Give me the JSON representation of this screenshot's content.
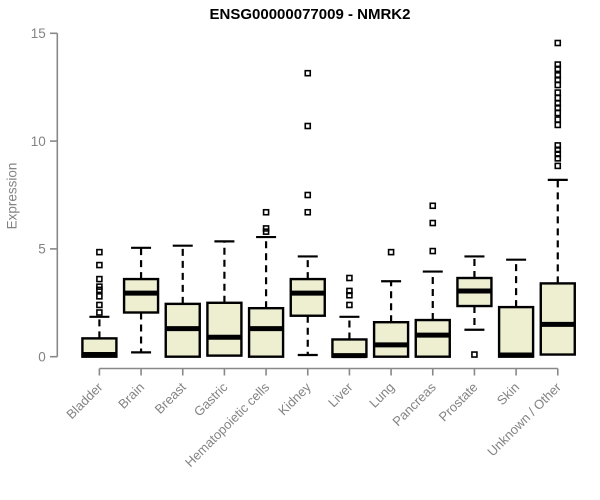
{
  "chart_data": {
    "type": "boxplot",
    "title": "ENSG00000077009 - NMRK2",
    "ylabel": "Expression",
    "xlabel": "",
    "ylim": [
      0,
      15
    ],
    "yticks": [
      0,
      5,
      10,
      15
    ],
    "grid": false,
    "legend": "none",
    "colors": {
      "box_fill": "#EEEED1",
      "box_stroke": "#000000",
      "median": "#000000",
      "axis": "#888888",
      "tick_label": "#838383",
      "title": "#000000"
    },
    "categories": [
      "Bladder",
      "Brain",
      "Breast",
      "Gastric",
      "Hematopoietic cells",
      "Kidney",
      "Liver",
      "Lung",
      "Pancreas",
      "Prostate",
      "Skin",
      "Unknown / Other"
    ],
    "series": [
      {
        "label": "Bladder",
        "q1": 0,
        "median": 0.1,
        "q3": 0.85,
        "whisker_low": 0,
        "whisker_high": 1.85,
        "outliers": [
          2.05,
          2.4,
          2.8,
          3.1,
          3.25,
          3.6,
          4.25,
          4.85
        ]
      },
      {
        "label": "Brain",
        "q1": 2.05,
        "median": 2.95,
        "q3": 3.6,
        "whisker_low": 0.2,
        "whisker_high": 5.05,
        "outliers": []
      },
      {
        "label": "Breast",
        "q1": 0,
        "median": 1.3,
        "q3": 2.45,
        "whisker_low": 0,
        "whisker_high": 5.15,
        "outliers": []
      },
      {
        "label": "Gastric",
        "q1": 0.05,
        "median": 0.9,
        "q3": 2.5,
        "whisker_low": 0.05,
        "whisker_high": 5.35,
        "outliers": []
      },
      {
        "label": "Hematopoietic cells",
        "q1": 0,
        "median": 1.3,
        "q3": 2.25,
        "whisker_low": 0,
        "whisker_high": 5.55,
        "outliers": [
          5.8,
          5.95,
          6.7
        ]
      },
      {
        "label": "Kidney",
        "q1": 1.9,
        "median": 2.95,
        "q3": 3.6,
        "whisker_low": 0.08,
        "whisker_high": 4.65,
        "outliers": [
          6.7,
          7.5,
          10.7,
          13.15
        ]
      },
      {
        "label": "Liver",
        "q1": 0,
        "median": 0.05,
        "q3": 0.8,
        "whisker_low": 0,
        "whisker_high": 1.85,
        "outliers": [
          2.4,
          2.85,
          3.05,
          3.65
        ]
      },
      {
        "label": "Lung",
        "q1": 0,
        "median": 0.55,
        "q3": 1.6,
        "whisker_low": 0,
        "whisker_high": 3.5,
        "outliers": [
          4.85
        ]
      },
      {
        "label": "Pancreas",
        "q1": 0,
        "median": 1.0,
        "q3": 1.7,
        "whisker_low": 0,
        "whisker_high": 3.95,
        "outliers": [
          4.9,
          6.2,
          7.0
        ]
      },
      {
        "label": "Prostate",
        "q1": 2.35,
        "median": 3.05,
        "q3": 3.65,
        "whisker_low": 1.25,
        "whisker_high": 4.65,
        "outliers": [
          0.1
        ]
      },
      {
        "label": "Skin",
        "q1": 0,
        "median": 0.08,
        "q3": 2.3,
        "whisker_low": 0,
        "whisker_high": 4.5,
        "outliers": []
      },
      {
        "label": "Unknown / Other",
        "q1": 0.1,
        "median": 1.5,
        "q3": 3.4,
        "whisker_low": 0.1,
        "whisker_high": 8.2,
        "outliers": [
          8.85,
          9.2,
          9.4,
          9.6,
          9.8,
          10.75,
          11.0,
          11.3,
          11.55,
          11.75,
          12.0,
          12.25,
          12.6,
          12.85,
          13.05,
          13.35,
          13.55,
          14.55
        ]
      }
    ]
  }
}
